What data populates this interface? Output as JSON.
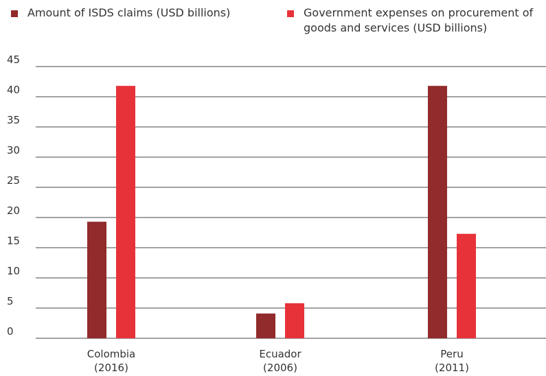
{
  "colors": {
    "series0": "#922b2b",
    "series1": "#e8323a",
    "grid": "#444444"
  },
  "chart_data": {
    "type": "bar",
    "categories": [
      "Colombia\n(2016)",
      "Ecuador\n(2006)",
      "Peru\n(2011)"
    ],
    "series": [
      {
        "name": "Amount of ISDS claims (USD billions)",
        "values": [
          19.3,
          4.1,
          41.8
        ]
      },
      {
        "name": "Government expenses on procurement of goods and services (USD billions)",
        "values": [
          41.8,
          5.8,
          17.3
        ]
      }
    ],
    "ylim": [
      0,
      45
    ],
    "yticks": [
      0,
      5,
      10,
      15,
      20,
      25,
      30,
      35,
      40,
      45
    ],
    "grid": true,
    "legend": "top",
    "title": "",
    "xlabel": "",
    "ylabel": ""
  }
}
